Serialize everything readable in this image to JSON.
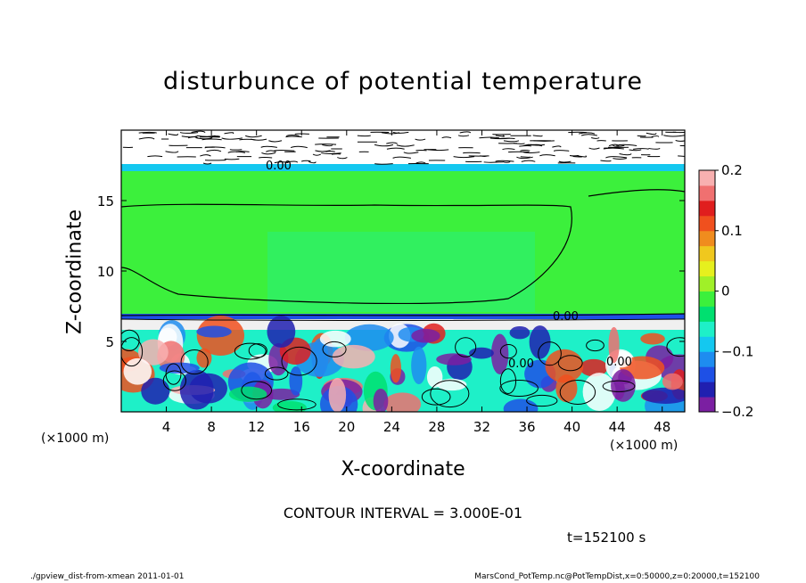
{
  "chart_data": {
    "type": "heatmap",
    "title": "disturbunce of potential temperature",
    "xlabel": "X-coordinate",
    "ylabel": "Z-coordinate",
    "x_unit_left": "(×1000 m)",
    "x_unit_right": "(×1000 m)",
    "xlim": [
      0,
      50
    ],
    "ylim": [
      0,
      20
    ],
    "x_ticks": [
      4,
      8,
      12,
      16,
      20,
      24,
      28,
      32,
      36,
      40,
      44,
      48
    ],
    "x_tick_labels": [
      "4",
      "8",
      "12",
      "16",
      "20",
      "24",
      "28",
      "32",
      "36",
      "40",
      "44",
      "48"
    ],
    "y_ticks": [
      5,
      10,
      15
    ],
    "y_tick_labels": [
      "5",
      "10",
      "15"
    ],
    "colorbar": {
      "range": [
        -0.2,
        0.2
      ],
      "ticks": [
        0.2,
        0.1,
        0,
        -0.1,
        -0.2
      ],
      "tick_labels": [
        "0.2",
        "0.1",
        "0",
        "−0.1",
        "−0.2"
      ],
      "colors": [
        "#7b1fa2",
        "#2020b0",
        "#1e50e6",
        "#1e8cf0",
        "#14c8f0",
        "#1ef0c8",
        "#00e070",
        "#3cf03c",
        "#a0f028",
        "#e6f01e",
        "#f0c81e",
        "#f08c1e",
        "#f0501e",
        "#e01e1e",
        "#f07070",
        "#f8b0b0"
      ]
    },
    "contour_labels": [
      "0.00",
      "0.00",
      "0.00",
      "0.00"
    ],
    "contour_interval": "CONTOUR INTERVAL = 3.000E-01",
    "time": "t=152100 s"
  },
  "footer": {
    "left": "./gpview_dist-from-xmean  2011-01-01",
    "right": "MarsCond_PotTemp.nc@PotTempDist,x=0:50000,z=0:20000,t=152100"
  }
}
